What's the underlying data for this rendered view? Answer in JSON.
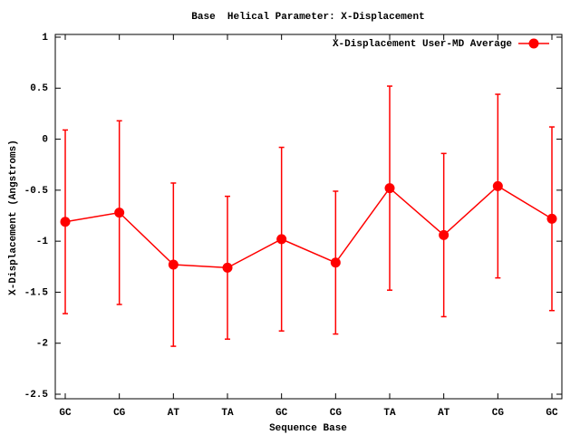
{
  "chart_data": {
    "type": "line",
    "title": "Base  Helical Parameter: X-Displacement",
    "x_label": "Sequence Base",
    "y_label": "X-Displacement (Angstroms)",
    "categories": [
      "GC",
      "CG",
      "AT",
      "TA",
      "GC",
      "CG",
      "TA",
      "AT",
      "CG",
      "GC"
    ],
    "series": [
      {
        "name": "X-Displacement User-MD Average",
        "color": "#ff0000",
        "values": [
          -0.81,
          -0.72,
          -1.23,
          -1.26,
          -0.98,
          -1.21,
          -0.48,
          -0.94,
          -0.46,
          -0.78
        ],
        "errors": [
          0.9,
          0.9,
          0.8,
          0.7,
          0.9,
          0.7,
          1.0,
          0.8,
          0.9,
          0.9
        ]
      }
    ],
    "ylim": [
      -2.5,
      1
    ],
    "yticks": [
      -2.5,
      -2,
      -1.5,
      -1,
      -0.5,
      0,
      0.5,
      1
    ],
    "legend": "top-right"
  }
}
